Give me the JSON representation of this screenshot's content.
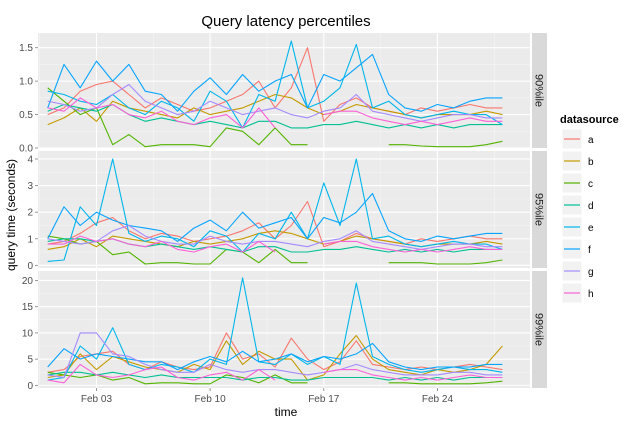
{
  "chart_data": {
    "type": "line",
    "title": "Query latency percentiles",
    "xlabel": "time",
    "ylabel": "query time (seconds)",
    "x_ticks": [
      {
        "day": 3,
        "label": "Feb 03"
      },
      {
        "day": 10,
        "label": "Feb 10"
      },
      {
        "day": 17,
        "label": "Feb 17"
      },
      {
        "day": 24,
        "label": "Feb 24"
      }
    ],
    "xlim": [
      -0.6,
      29.7
    ],
    "x_days": [
      0,
      1,
      2,
      3,
      4,
      5,
      6,
      7,
      8,
      9,
      10,
      11,
      12,
      13,
      14,
      15,
      16,
      17,
      18,
      19,
      20,
      21,
      22,
      23,
      24,
      25,
      26,
      27,
      28
    ],
    "legend": {
      "title": "datasource",
      "entries": [
        {
          "name": "a",
          "color": "#F8766D"
        },
        {
          "name": "b",
          "color": "#C49A00"
        },
        {
          "name": "c",
          "color": "#53B400"
        },
        {
          "name": "d",
          "color": "#00C094"
        },
        {
          "name": "e",
          "color": "#00B6EB"
        },
        {
          "name": "f",
          "color": "#06A4FF"
        },
        {
          "name": "g",
          "color": "#A58AFF"
        },
        {
          "name": "h",
          "color": "#FB61D7"
        }
      ]
    },
    "panels": [
      {
        "strip": "90%ile",
        "ylim": [
          0,
          1.72
        ],
        "y_ticks": [
          0.0,
          0.5,
          1.0,
          1.5
        ],
        "y_tick_labels": [
          "0.0",
          "0.5",
          "1.0",
          "1.5"
        ],
        "series": [
          {
            "name": "a",
            "values": [
              0.5,
              0.6,
              0.85,
              0.95,
              1.0,
              0.8,
              0.6,
              0.75,
              0.65,
              0.55,
              0.6,
              0.7,
              0.8,
              1.0,
              0.6,
              0.9,
              1.5,
              0.4,
              0.65,
              0.75,
              0.6,
              0.55,
              0.5,
              0.6,
              0.55,
              0.6,
              0.65,
              0.6,
              0.6
            ]
          },
          {
            "name": "b",
            "values": [
              0.35,
              0.45,
              0.6,
              0.4,
              0.7,
              0.6,
              0.55,
              0.5,
              0.45,
              0.6,
              0.5,
              0.55,
              0.6,
              0.7,
              0.8,
              0.75,
              0.6,
              0.5,
              0.55,
              0.65,
              0.6,
              0.55,
              0.5,
              0.45,
              0.5,
              0.5,
              0.5,
              0.55,
              0.5
            ]
          },
          {
            "name": "c",
            "values": [
              0.9,
              0.7,
              0.5,
              0.6,
              0.05,
              0.2,
              0.02,
              0.05,
              0.05,
              0.05,
              0.02,
              0.3,
              0.25,
              0.05,
              0.3,
              0.05,
              0.05,
              null,
              null,
              null,
              null,
              0.05,
              0.05,
              0.03,
              0.02,
              0.02,
              0.02,
              0.05,
              0.1
            ]
          },
          {
            "name": "d",
            "values": [
              0.55,
              0.65,
              0.6,
              0.55,
              0.65,
              0.5,
              0.4,
              0.45,
              0.4,
              0.35,
              0.4,
              0.35,
              0.3,
              0.4,
              0.4,
              0.3,
              0.3,
              0.35,
              0.35,
              0.4,
              0.35,
              0.3,
              0.35,
              0.3,
              0.35,
              0.3,
              0.35,
              0.35,
              0.35
            ]
          },
          {
            "name": "e",
            "values": [
              0.85,
              0.8,
              0.7,
              0.65,
              0.8,
              0.6,
              0.5,
              0.7,
              0.6,
              0.4,
              0.85,
              0.7,
              0.3,
              0.8,
              0.7,
              1.6,
              0.6,
              0.7,
              0.9,
              1.55,
              0.6,
              0.7,
              0.5,
              0.45,
              0.5,
              0.55,
              0.5,
              0.5,
              0.35
            ]
          },
          {
            "name": "f",
            "values": [
              0.6,
              1.25,
              0.9,
              1.3,
              1.0,
              1.25,
              0.85,
              0.8,
              0.55,
              0.85,
              1.05,
              0.8,
              1.1,
              0.85,
              1.0,
              1.1,
              0.6,
              1.1,
              1.0,
              1.2,
              1.4,
              0.8,
              0.6,
              0.55,
              0.65,
              0.6,
              0.7,
              0.75,
              0.75
            ]
          },
          {
            "name": "g",
            "values": [
              0.7,
              0.65,
              0.55,
              0.6,
              0.8,
              0.95,
              0.7,
              0.6,
              0.5,
              0.55,
              0.7,
              0.6,
              0.5,
              0.55,
              0.6,
              0.5,
              0.45,
              0.55,
              0.6,
              0.8,
              0.55,
              0.5,
              0.45,
              0.4,
              0.45,
              0.5,
              0.5,
              0.45,
              0.45
            ]
          },
          {
            "name": "h",
            "values": [
              0.6,
              0.55,
              0.75,
              0.6,
              0.65,
              0.5,
              0.45,
              0.55,
              0.4,
              0.35,
              0.45,
              0.5,
              0.3,
              0.6,
              0.3,
              null,
              null,
              0.5,
              0.55,
              0.55,
              0.45,
              0.4,
              0.35,
              0.4,
              0.35,
              0.4,
              0.45,
              0.4,
              0.4
            ]
          }
        ]
      },
      {
        "strip": "95%ile",
        "ylim": [
          -0.1,
          4.3
        ],
        "y_ticks": [
          0,
          1,
          2,
          3,
          4
        ],
        "y_tick_labels": [
          "0",
          "1",
          "2",
          "3",
          "4"
        ],
        "series": [
          {
            "name": "a",
            "values": [
              0.8,
              0.9,
              1.2,
              1.6,
              1.8,
              1.3,
              1.0,
              1.2,
              1.1,
              0.9,
              1.0,
              1.1,
              1.3,
              1.6,
              1.0,
              1.5,
              2.4,
              0.7,
              0.9,
              1.2,
              1.0,
              0.9,
              0.8,
              1.0,
              0.9,
              1.0,
              1.1,
              1.0,
              1.0
            ]
          },
          {
            "name": "b",
            "values": [
              0.6,
              0.7,
              1.0,
              0.7,
              1.1,
              1.0,
              0.9,
              0.8,
              0.7,
              0.9,
              0.8,
              0.9,
              1.0,
              1.2,
              1.3,
              1.2,
              1.0,
              0.8,
              0.9,
              1.1,
              1.0,
              0.9,
              0.8,
              0.7,
              0.8,
              0.8,
              0.8,
              0.9,
              0.8
            ]
          },
          {
            "name": "c",
            "values": [
              1.1,
              1.0,
              0.8,
              0.9,
              0.4,
              0.5,
              0.05,
              0.1,
              0.1,
              0.05,
              0.05,
              0.6,
              0.5,
              0.1,
              0.6,
              0.1,
              0.1,
              null,
              null,
              null,
              null,
              0.1,
              0.1,
              0.1,
              0.05,
              0.05,
              0.05,
              0.1,
              0.2
            ]
          },
          {
            "name": "d",
            "values": [
              0.9,
              1.0,
              1.0,
              0.9,
              1.0,
              0.8,
              0.7,
              0.8,
              0.7,
              0.6,
              0.7,
              0.6,
              0.5,
              0.7,
              0.7,
              0.5,
              0.5,
              0.6,
              0.6,
              0.7,
              0.6,
              0.5,
              0.6,
              0.5,
              0.6,
              0.5,
              0.6,
              0.6,
              0.6
            ]
          },
          {
            "name": "e",
            "values": [
              0.15,
              0.2,
              2.2,
              1.5,
              4.0,
              1.2,
              0.9,
              1.1,
              1.0,
              0.7,
              1.3,
              1.1,
              0.5,
              1.2,
              1.0,
              2.0,
              1.0,
              3.1,
              1.5,
              4.0,
              1.0,
              1.1,
              0.8,
              0.7,
              0.8,
              0.9,
              0.8,
              0.8,
              0.6
            ]
          },
          {
            "name": "f",
            "values": [
              1.0,
              2.2,
              1.5,
              2.0,
              1.7,
              1.5,
              1.4,
              1.3,
              0.9,
              1.4,
              1.7,
              1.3,
              2.0,
              1.4,
              1.6,
              1.8,
              1.0,
              1.8,
              1.6,
              2.0,
              2.7,
              1.3,
              1.0,
              0.9,
              1.1,
              1.0,
              1.1,
              1.2,
              1.2
            ]
          },
          {
            "name": "g",
            "values": [
              1.0,
              0.9,
              0.8,
              0.9,
              1.3,
              1.5,
              1.1,
              0.9,
              0.8,
              0.8,
              1.1,
              0.9,
              0.8,
              0.9,
              0.9,
              0.8,
              0.7,
              0.9,
              1.0,
              1.3,
              0.9,
              0.8,
              0.7,
              0.6,
              0.7,
              0.8,
              0.8,
              0.7,
              0.7
            ]
          },
          {
            "name": "h",
            "values": [
              0.8,
              0.8,
              1.1,
              0.9,
              1.0,
              0.8,
              0.7,
              0.9,
              0.6,
              0.5,
              0.7,
              0.8,
              0.5,
              0.9,
              0.5,
              null,
              null,
              0.8,
              0.9,
              0.9,
              0.7,
              0.6,
              0.5,
              0.6,
              0.5,
              0.6,
              0.7,
              0.6,
              0.6
            ]
          }
        ]
      },
      {
        "strip": "99%ile",
        "ylim": [
          -0.5,
          21.8
        ],
        "y_ticks": [
          0,
          5,
          10,
          15,
          20
        ],
        "y_tick_labels": [
          "0",
          "5",
          "10",
          "15",
          "20"
        ],
        "series": [
          {
            "name": "a",
            "values": [
              2.5,
              3.0,
              5.5,
              6.0,
              6.5,
              4.0,
              3.0,
              4.5,
              3.5,
              3.0,
              3.5,
              10.0,
              5.0,
              6.0,
              3.5,
              9.0,
              5.0,
              3.0,
              4.5,
              8.5,
              4.0,
              3.5,
              3.0,
              3.5,
              3.0,
              3.5,
              4.0,
              3.5,
              3.0
            ]
          },
          {
            "name": "b",
            "values": [
              1.5,
              2.0,
              6.0,
              3.0,
              5.5,
              4.5,
              3.5,
              3.0,
              2.5,
              4.0,
              3.0,
              8.5,
              4.0,
              6.5,
              5.0,
              5.0,
              1.0,
              2.0,
              6.0,
              9.5,
              5.0,
              3.0,
              2.5,
              2.0,
              3.0,
              2.5,
              3.0,
              4.0,
              7.5
            ]
          },
          {
            "name": "c",
            "values": [
              2.5,
              2.0,
              1.5,
              2.0,
              1.0,
              1.5,
              0.3,
              0.5,
              0.5,
              0.3,
              0.3,
              2.0,
              1.5,
              0.5,
              2.0,
              0.5,
              0.5,
              null,
              null,
              null,
              null,
              0.5,
              0.5,
              0.3,
              0.3,
              0.3,
              0.3,
              0.5,
              0.8
            ]
          },
          {
            "name": "d",
            "values": [
              2.0,
              2.5,
              2.5,
              2.0,
              2.5,
              2.0,
              1.5,
              2.0,
              1.5,
              1.5,
              1.5,
              1.5,
              1.0,
              1.5,
              1.5,
              1.0,
              1.0,
              1.5,
              1.5,
              1.5,
              1.5,
              1.0,
              1.5,
              1.0,
              1.5,
              1.0,
              1.5,
              1.5,
              1.5
            ]
          },
          {
            "name": "e",
            "values": [
              1.0,
              1.5,
              7.5,
              5.0,
              11.0,
              4.0,
              3.0,
              4.0,
              3.5,
              2.5,
              5.0,
              4.0,
              20.5,
              4.5,
              4.0,
              6.0,
              4.0,
              5.5,
              4.0,
              19.5,
              5.5,
              4.0,
              3.0,
              2.5,
              3.0,
              3.5,
              3.0,
              3.0,
              2.5
            ]
          },
          {
            "name": "f",
            "values": [
              3.5,
              7.0,
              5.0,
              6.0,
              5.5,
              5.0,
              4.5,
              4.5,
              3.0,
              4.5,
              5.5,
              4.5,
              6.5,
              4.5,
              5.0,
              6.0,
              4.5,
              5.5,
              5.0,
              6.0,
              8.0,
              4.5,
              3.5,
              3.0,
              3.5,
              3.5,
              3.5,
              4.0,
              4.0
            ]
          },
          {
            "name": "g",
            "values": [
              2.0,
              1.5,
              10.0,
              10.0,
              6.0,
              5.5,
              4.0,
              3.0,
              2.5,
              2.5,
              4.0,
              3.0,
              2.5,
              3.0,
              3.0,
              2.5,
              2.0,
              2.5,
              3.0,
              4.0,
              3.0,
              2.5,
              2.0,
              2.0,
              2.0,
              2.5,
              2.5,
              2.0,
              2.0
            ]
          },
          {
            "name": "h",
            "values": [
              1.0,
              0.5,
              4.0,
              2.0,
              1.5,
              2.0,
              3.0,
              3.5,
              1.5,
              1.0,
              2.0,
              2.5,
              1.0,
              3.0,
              1.0,
              null,
              null,
              2.5,
              3.0,
              3.0,
              2.0,
              1.5,
              1.0,
              1.5,
              1.0,
              1.5,
              2.0,
              1.5,
              1.5
            ]
          }
        ]
      }
    ]
  }
}
